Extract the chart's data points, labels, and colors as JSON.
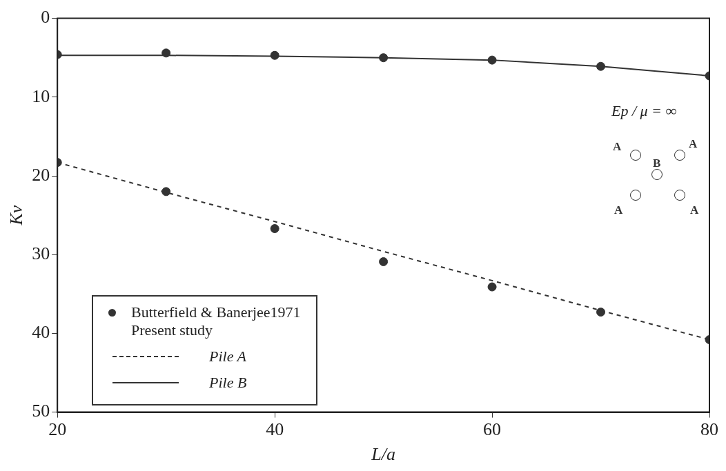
{
  "chart_data": {
    "type": "scatter",
    "xlabel": "L/a",
    "ylabel": "Kv",
    "xlim": [
      20,
      80
    ],
    "xticks": [
      20,
      40,
      60,
      80
    ],
    "ylim": [
      50,
      0
    ],
    "yticks": [
      0,
      10,
      20,
      30,
      40,
      50
    ],
    "grid": false,
    "legend": "bottom left",
    "annotations": [
      "Present study",
      "Ep / μ = ∞",
      "A",
      "A",
      "B",
      "A",
      "A"
    ],
    "series": [
      {
        "name": "Pile A",
        "type": "line",
        "line_style": "dashed",
        "marker": "none",
        "color": "#333333",
        "x": [
          20,
          30,
          40,
          50,
          60,
          70,
          80
        ],
        "values": [
          18.3,
          22.1,
          25.8,
          29.6,
          33.3,
          37.1,
          40.8
        ]
      },
      {
        "name": "Pile B",
        "type": "line",
        "line_style": "solid",
        "marker": "none",
        "color": "#333333",
        "x": [
          20,
          30,
          40,
          50,
          60,
          70,
          80
        ],
        "values": [
          4.7,
          4.7,
          4.8,
          5.0,
          5.3,
          6.1,
          7.3
        ]
      },
      {
        "name": "Butterfield & Banerjee1971",
        "type": "scatter",
        "marker": "circle",
        "color": "#333333",
        "x": [
          20,
          30,
          40,
          50,
          60,
          70,
          80,
          20,
          30,
          40,
          50,
          60,
          70,
          80
        ],
        "values": [
          4.6,
          4.4,
          4.7,
          5.0,
          5.3,
          6.1,
          7.3,
          18.3,
          22.0,
          26.7,
          30.9,
          34.1,
          37.3,
          40.8
        ]
      }
    ]
  }
}
